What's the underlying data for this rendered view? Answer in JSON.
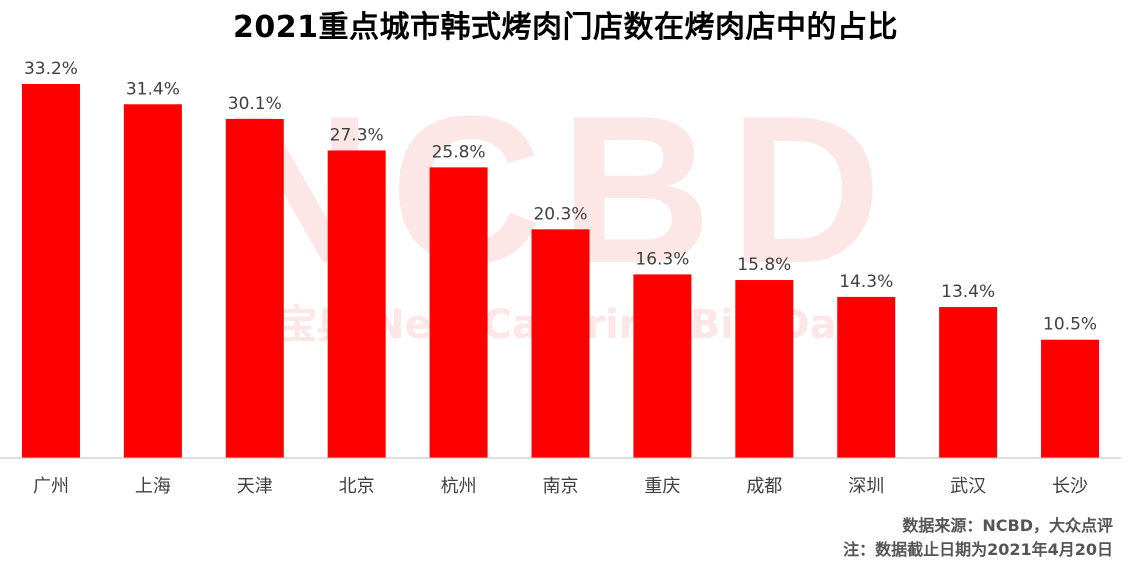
{
  "title": "2021重点城市韩式烤肉门店数在烤肉店中的占比",
  "watermark": {
    "logo_text": "NCBD",
    "subtitle": "餐宝典 New Catering Big Data"
  },
  "colors": {
    "bar": "#ff0000",
    "axis": "#bfbfbf",
    "label": "#404040",
    "watermark": "#fde6e6"
  },
  "chart_data": {
    "type": "bar",
    "title": "2021重点城市韩式烤肉门店数在烤肉店中的占比",
    "categories": [
      "广州",
      "上海",
      "天津",
      "北京",
      "杭州",
      "南京",
      "重庆",
      "成都",
      "深圳",
      "武汉",
      "长沙"
    ],
    "series": [
      {
        "values": [
          33.2,
          31.4,
          30.1,
          27.3,
          25.8,
          20.3,
          16.3,
          15.8,
          14.3,
          13.4,
          10.5
        ],
        "labels": [
          "33.2%",
          "31.4%",
          "30.1%",
          "27.3%",
          "25.8%",
          "20.3%",
          "16.3%",
          "15.8%",
          "14.3%",
          "13.4%",
          "10.5%"
        ]
      }
    ],
    "ylim": [
      0,
      33.2
    ],
    "grid": false,
    "legend": "none",
    "xlabel": "",
    "ylabel": ""
  },
  "footer": {
    "source": "数据来源：NCBD，大众点评",
    "note": "注：数据截止日期为2021年4月20日"
  }
}
